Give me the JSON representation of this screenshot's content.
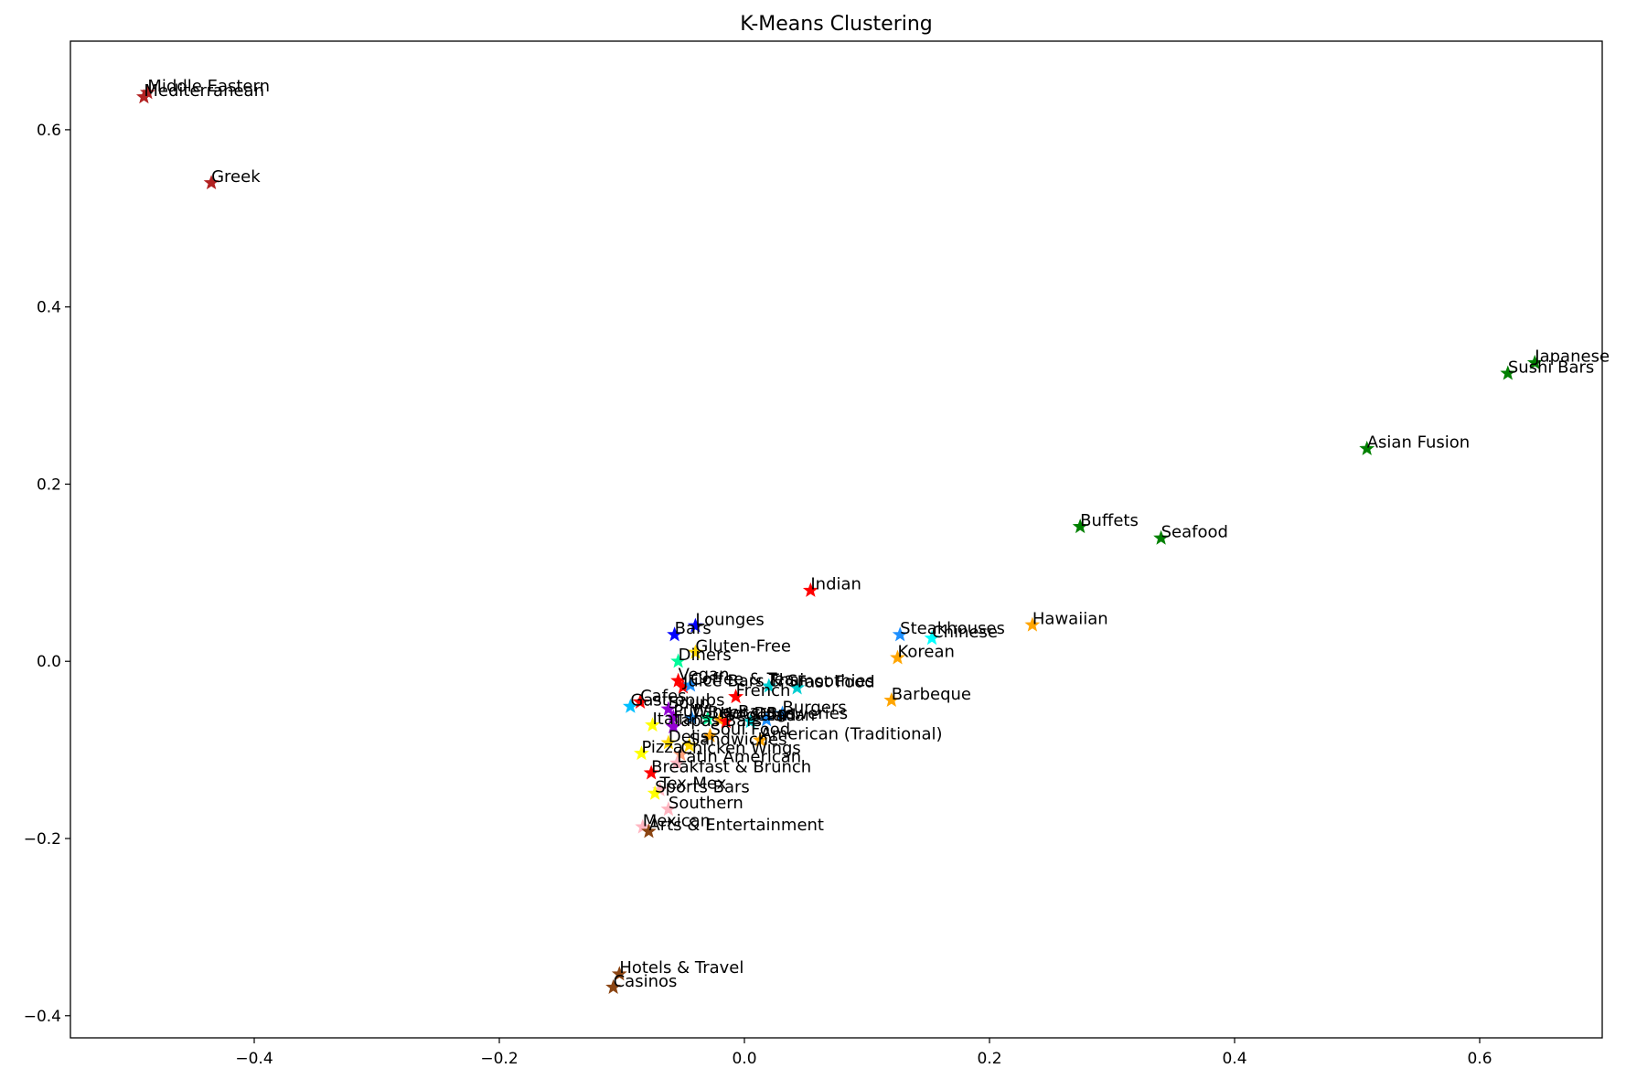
{
  "chart_data": {
    "type": "scatter",
    "title": "K-Means Clustering",
    "xlabel": "",
    "ylabel": "",
    "xlim": [
      -0.55,
      0.7
    ],
    "ylim": [
      -0.425,
      0.7
    ],
    "grid": false,
    "legend": "none",
    "marker": "star",
    "xticks": [
      -0.4,
      -0.2,
      0.0,
      0.2,
      0.4,
      0.6
    ],
    "xtick_labels": [
      "−0.4",
      "−0.2",
      "0.0",
      "0.2",
      "0.4",
      "0.6"
    ],
    "yticks": [
      -0.4,
      -0.2,
      0.0,
      0.2,
      0.4,
      0.6
    ],
    "ytick_labels": [
      "−0.4",
      "−0.2",
      "0.0",
      "0.2",
      "0.4",
      "0.6"
    ],
    "points": [
      {
        "label": "Middle Eastern",
        "x": -0.487,
        "y": 0.642,
        "color": "#b22222"
      },
      {
        "label": "Mediterranean",
        "x": -0.49,
        "y": 0.637,
        "color": "#b22222"
      },
      {
        "label": "Greek",
        "x": -0.435,
        "y": 0.54,
        "color": "#b22222"
      },
      {
        "label": "Japanese",
        "x": 0.645,
        "y": 0.337,
        "color": "#008000"
      },
      {
        "label": "Sushi Bars",
        "x": 0.623,
        "y": 0.325,
        "color": "#008000"
      },
      {
        "label": "Asian Fusion",
        "x": 0.508,
        "y": 0.24,
        "color": "#008000"
      },
      {
        "label": "Buffets",
        "x": 0.274,
        "y": 0.152,
        "color": "#008000"
      },
      {
        "label": "Seafood",
        "x": 0.34,
        "y": 0.139,
        "color": "#008000"
      },
      {
        "label": "Indian",
        "x": 0.054,
        "y": 0.08,
        "color": "#ff0000"
      },
      {
        "label": "Hawaiian",
        "x": 0.235,
        "y": 0.041,
        "color": "#ffa500"
      },
      {
        "label": "Lounges",
        "x": -0.04,
        "y": 0.04,
        "color": "#0000ff"
      },
      {
        "label": "Bars",
        "x": -0.057,
        "y": 0.03,
        "color": "#0000ff"
      },
      {
        "label": "Steakhouses",
        "x": 0.127,
        "y": 0.03,
        "color": "#1e90ff"
      },
      {
        "label": "Chinese",
        "x": 0.153,
        "y": 0.026,
        "color": "#00ffff"
      },
      {
        "label": "Gluten-Free",
        "x": -0.04,
        "y": 0.01,
        "color": "#ffd700"
      },
      {
        "label": "Korean",
        "x": 0.125,
        "y": 0.004,
        "color": "#ffa500"
      },
      {
        "label": "Diners",
        "x": -0.054,
        "y": 0.0,
        "color": "#00fa9a"
      },
      {
        "label": "Vegan",
        "x": -0.054,
        "y": -0.022,
        "color": "#ff0000"
      },
      {
        "label": "Juice Bars & Smoothies",
        "x": -0.05,
        "y": -0.029,
        "color": "#ff0000"
      },
      {
        "label": "Coffee & Tea",
        "x": -0.044,
        "y": -0.027,
        "color": "#1e90ff"
      },
      {
        "label": "Thai",
        "x": 0.02,
        "y": -0.028,
        "color": "#00ced1"
      },
      {
        "label": "Fast Food",
        "x": 0.043,
        "y": -0.03,
        "color": "#00ced1"
      },
      {
        "label": "French",
        "x": -0.007,
        "y": -0.04,
        "color": "#ff0000"
      },
      {
        "label": "Barbeque",
        "x": 0.12,
        "y": -0.044,
        "color": "#ffa500"
      },
      {
        "label": "Cafes",
        "x": -0.085,
        "y": -0.046,
        "color": "#ff0000"
      },
      {
        "label": "Gastropubs",
        "x": -0.093,
        "y": -0.051,
        "color": "#00bfff"
      },
      {
        "label": "Soup",
        "x": -0.062,
        "y": -0.054,
        "color": "#9400d3"
      },
      {
        "label": "Burgers",
        "x": 0.031,
        "y": -0.059,
        "color": "#1e90ff"
      },
      {
        "label": "Pubs",
        "x": -0.058,
        "y": -0.063,
        "color": "#9400d3"
      },
      {
        "label": "Wine Bars",
        "x": -0.043,
        "y": -0.064,
        "color": "#1e90ff"
      },
      {
        "label": "Beer",
        "x": -0.03,
        "y": -0.065,
        "color": "#00fa9a"
      },
      {
        "label": "Hot Dogs",
        "x": -0.02,
        "y": -0.066,
        "color": "#ffa500"
      },
      {
        "label": "Vegetarian",
        "x": -0.015,
        "y": -0.068,
        "color": "#ff0000"
      },
      {
        "label": "Salad",
        "x": 0.005,
        "y": -0.068,
        "color": "#00ced1"
      },
      {
        "label": "Breweries",
        "x": 0.018,
        "y": -0.066,
        "color": "#1e90ff"
      },
      {
        "label": "Italian",
        "x": -0.075,
        "y": -0.072,
        "color": "#ffff00"
      },
      {
        "label": "Tapas Bars",
        "x": -0.058,
        "y": -0.074,
        "color": "#9400d3"
      },
      {
        "label": "Soul Food",
        "x": -0.028,
        "y": -0.084,
        "color": "#ffa500"
      },
      {
        "label": "American (Traditional)",
        "x": 0.013,
        "y": -0.089,
        "color": "#ffa500"
      },
      {
        "label": "Delis",
        "x": -0.062,
        "y": -0.092,
        "color": "#ffd700"
      },
      {
        "label": "Sandwiches",
        "x": -0.045,
        "y": -0.095,
        "color": "#ffd700"
      },
      {
        "label": "Chicken Wings",
        "x": -0.052,
        "y": -0.105,
        "color": "#ffa07a"
      },
      {
        "label": "Pizza",
        "x": -0.084,
        "y": -0.104,
        "color": "#ffff00"
      },
      {
        "label": "Latin American",
        "x": -0.055,
        "y": -0.115,
        "color": "#ffb6c1"
      },
      {
        "label": "Breakfast & Brunch",
        "x": -0.076,
        "y": -0.126,
        "color": "#ff0000"
      },
      {
        "label": "Tex-Mex",
        "x": -0.069,
        "y": -0.145,
        "color": "#ffb6c1"
      },
      {
        "label": "Sports Bars",
        "x": -0.073,
        "y": -0.149,
        "color": "#ffff00"
      },
      {
        "label": "Southern",
        "x": -0.062,
        "y": -0.167,
        "color": "#ffb6c1"
      },
      {
        "label": "Mexican",
        "x": -0.083,
        "y": -0.187,
        "color": "#ffb6c1"
      },
      {
        "label": "Arts & Entertainment",
        "x": -0.078,
        "y": -0.192,
        "color": "#8b4513"
      },
      {
        "label": "Hotels & Travel",
        "x": -0.102,
        "y": -0.353,
        "color": "#8b4513"
      },
      {
        "label": "Casinos",
        "x": -0.107,
        "y": -0.368,
        "color": "#8b4513"
      }
    ]
  }
}
